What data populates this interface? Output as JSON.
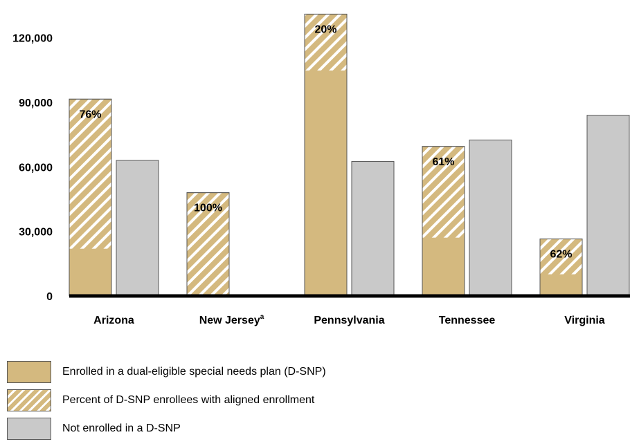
{
  "chart_data": {
    "type": "bar",
    "categories": [
      "Arizona",
      "New Jersey",
      "Pennsylvania",
      "Tennessee",
      "Virginia"
    ],
    "category_superscripts": [
      "",
      "a",
      "",
      "",
      ""
    ],
    "series": [
      {
        "name": "Enrolled in a dual-eligible special needs plan (D-SNP)",
        "values": [
          91500,
          48000,
          131000,
          69500,
          26500
        ]
      },
      {
        "name": "Not enrolled in a D-SNP",
        "values": [
          63000,
          null,
          62500,
          72500,
          84000
        ]
      }
    ],
    "aligned_percent": {
      "name": "Percent of D-SNP enrollees with aligned enrollment",
      "values": [
        0.76,
        1.0,
        0.2,
        0.61,
        0.62
      ],
      "labels": [
        "76%",
        "100%",
        "20%",
        "61%",
        "62%"
      ]
    },
    "ylim": [
      0,
      135000
    ],
    "yticks": [
      0,
      30000,
      60000,
      90000,
      120000
    ],
    "ytick_labels": [
      "0",
      "30,000",
      "60,000",
      "90,000",
      "120,000"
    ],
    "xlabel": "",
    "ylabel": "",
    "title": "",
    "grid": false,
    "legend": "bottom",
    "colors": {
      "enrolled": "#d4b97f",
      "hatch": "#ffffff",
      "not_enrolled": "#c9c9c9",
      "stroke": "#555555",
      "axis": "#000000"
    }
  },
  "legend": {
    "items": [
      {
        "label": "Enrolled in a dual-eligible special needs plan (D-SNP)",
        "swatch": "solid"
      },
      {
        "label": "Percent of D-SNP enrollees with aligned enrollment",
        "swatch": "hatch"
      },
      {
        "label": "Not enrolled in a D-SNP",
        "swatch": "gray"
      }
    ]
  }
}
